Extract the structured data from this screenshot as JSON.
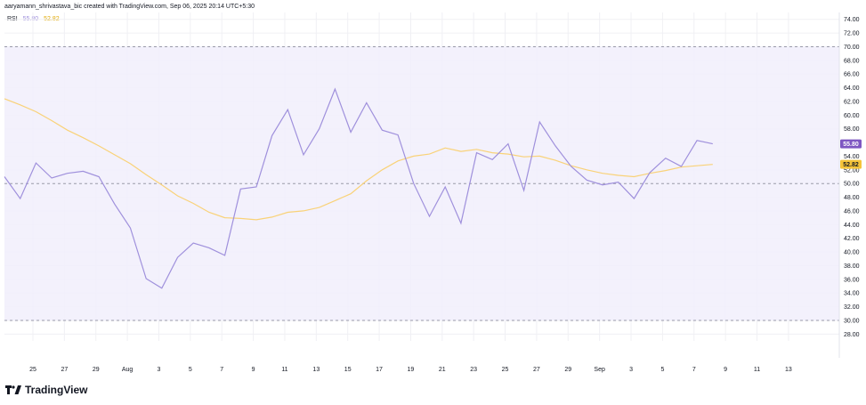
{
  "header": {
    "credit": "aaryamann_shrivastava_bic created with TradingView.com, Sep 06, 2025 20:14 UTC+5:30"
  },
  "legend": {
    "name": "RSI",
    "rsi_value": "55.80",
    "ma_value": "52.82"
  },
  "brand": {
    "text": "TradingView",
    "logo_icon": "tradingview-logo-icon"
  },
  "colors": {
    "rsi_line": "#9f90dc",
    "ma_line": "#f9d278",
    "band_fill": "#f1eefb",
    "rsi_badge": "#7e57c2",
    "ma_badge": "#f5c43a",
    "guide": "#9a9aaa",
    "grid": "#f0f0f4"
  },
  "chart_data": {
    "type": "line",
    "ylim": [
      27,
      75
    ],
    "y_ticks": [
      "28.00",
      "30.00",
      "32.00",
      "34.00",
      "36.00",
      "38.00",
      "40.00",
      "42.00",
      "44.00",
      "46.00",
      "48.00",
      "50.00",
      "52.00",
      "54.00",
      "56.00",
      "58.00",
      "60.00",
      "62.00",
      "64.00",
      "66.00",
      "68.00",
      "70.00",
      "72.00",
      "74.00"
    ],
    "band": [
      30,
      70
    ],
    "middle_line": 50,
    "x_tick_labels": [
      "25",
      "27",
      "29",
      "Aug",
      "3",
      "5",
      "7",
      "9",
      "11",
      "13",
      "15",
      "17",
      "19",
      "21",
      "23",
      "25",
      "27",
      "29",
      "Sep",
      "3",
      "5",
      "7",
      "9",
      "11",
      "13"
    ],
    "grid": true,
    "series": [
      {
        "name": "RSI",
        "values": [
          51.0,
          47.8,
          53.0,
          50.8,
          51.5,
          51.8,
          51.0,
          47.0,
          43.5,
          36.1,
          34.7,
          39.2,
          41.3,
          40.6,
          39.5,
          49.2,
          49.5,
          57.0,
          60.8,
          54.2,
          58.0,
          63.8,
          57.5,
          61.8,
          57.8,
          57.1,
          50.0,
          45.2,
          49.5,
          44.2,
          54.5,
          53.5,
          55.8,
          49.0,
          59.0,
          55.5,
          52.5,
          50.5,
          49.8,
          50.2,
          47.8,
          51.6,
          53.7,
          52.5,
          56.3,
          55.8
        ],
        "last_value": "55.80"
      },
      {
        "name": "MA",
        "values": [
          62.4,
          61.5,
          60.5,
          59.2,
          57.8,
          56.7,
          55.5,
          54.2,
          52.9,
          51.3,
          49.8,
          48.2,
          47.1,
          45.8,
          45.0,
          44.9,
          44.7,
          45.1,
          45.8,
          46.0,
          46.5,
          47.5,
          48.5,
          50.4,
          52.0,
          53.3,
          54.0,
          54.3,
          55.2,
          54.7,
          55.0,
          54.5,
          54.3,
          53.9,
          54.0,
          53.4,
          52.6,
          52.0,
          51.5,
          51.2,
          51.0,
          51.5,
          51.9,
          52.4,
          52.6,
          52.8
        ],
        "last_value": "52.82"
      }
    ]
  }
}
